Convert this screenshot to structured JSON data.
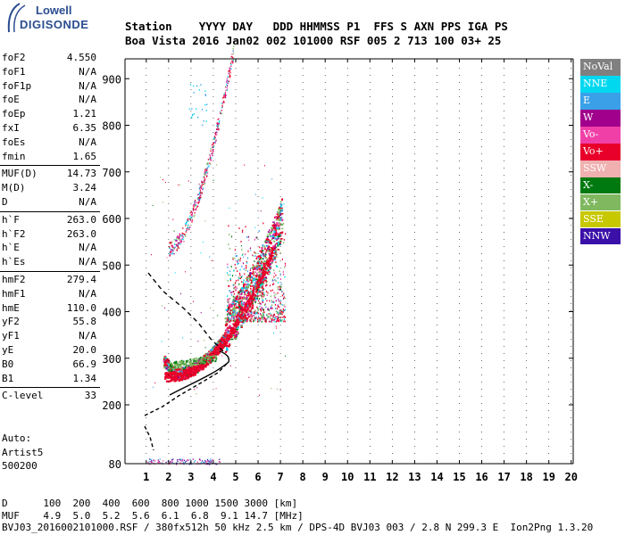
{
  "logo": {
    "brand": "Lowell",
    "product": "DIGISONDE"
  },
  "header": {
    "line1": "Station    YYYY DAY   DDD HHMMSS P1  FFS S AXN PPS IGA PS",
    "line2": "Boa Vista 2016 Jan02 002 101000 RSF 005 2 713 100 03+ 25"
  },
  "params": {
    "group1": [
      {
        "k": "foF2",
        "v": "4.550"
      },
      {
        "k": "foF1",
        "v": "N/A"
      },
      {
        "k": "foF1p",
        "v": "N/A"
      },
      {
        "k": "foE",
        "v": "N/A"
      },
      {
        "k": "foEp",
        "v": "1.21"
      },
      {
        "k": "fxI",
        "v": "6.35"
      },
      {
        "k": "foEs",
        "v": "N/A"
      },
      {
        "k": "fmin",
        "v": "1.65"
      }
    ],
    "group2": [
      {
        "k": "MUF(D)",
        "v": "14.73"
      },
      {
        "k": "M(D)",
        "v": "3.24"
      },
      {
        "k": "D",
        "v": "N/A"
      }
    ],
    "group3": [
      {
        "k": "h`F",
        "v": "263.0"
      },
      {
        "k": "h`F2",
        "v": "263.0"
      },
      {
        "k": "h`E",
        "v": "N/A"
      },
      {
        "k": "h`Es",
        "v": "N/A"
      }
    ],
    "group4": [
      {
        "k": "hmF2",
        "v": "279.4"
      },
      {
        "k": "hmF1",
        "v": "N/A"
      },
      {
        "k": "hmE",
        "v": "110.0"
      },
      {
        "k": "yF2",
        "v": "55.8"
      },
      {
        "k": "yF1",
        "v": "N/A"
      },
      {
        "k": "yE",
        "v": "20.0"
      },
      {
        "k": "B0",
        "v": "66.9"
      },
      {
        "k": "B1",
        "v": "1.34"
      }
    ],
    "group5": [
      {
        "k": "C-level",
        "v": "33"
      }
    ]
  },
  "artist": {
    "l1": "Auto:",
    "l2": "Artist5",
    "l3": "500200"
  },
  "legend": [
    {
      "label": "NoVal",
      "color": "#808080"
    },
    {
      "label": "NNE",
      "color": "#00d8f0"
    },
    {
      "label": "E",
      "color": "#3aa0e8"
    },
    {
      "label": "W",
      "color": "#a0008c"
    },
    {
      "label": "Vo-",
      "color": "#f040a8"
    },
    {
      "label": "Vo+",
      "color": "#e8002a"
    },
    {
      "label": "SSW",
      "color": "#f0b0b0"
    },
    {
      "label": "X-",
      "color": "#007a10"
    },
    {
      "label": "X+",
      "color": "#80b860"
    },
    {
      "label": "SSE",
      "color": "#c8c800"
    },
    {
      "label": "NNW",
      "color": "#3a10a8"
    }
  ],
  "axes": {
    "x_ticks": [
      "1",
      "2",
      "3",
      "4",
      "5",
      "6",
      "7",
      "8",
      "9",
      "10",
      "11",
      "12",
      "13",
      "14",
      "15",
      "16",
      "17",
      "18",
      "19",
      "20"
    ],
    "y_ticks": [
      "80",
      "200",
      "300",
      "400",
      "500",
      "600",
      "700",
      "800",
      "900"
    ]
  },
  "bottom": {
    "row1": "D      100  200  400  600  800 1000 1500 3000 [km]",
    "row2": "MUF    4.9  5.0  5.2  5.6  6.1  6.8  9.1 14.7 [MHz]",
    "row3": "BVJ03_2016002101000.RSF / 380fx512h 50 kHz 2.5 km / DPS-4D BVJ03 003 / 2.8 N 299.3 E  Ion2Png 1.3.20"
  }
}
